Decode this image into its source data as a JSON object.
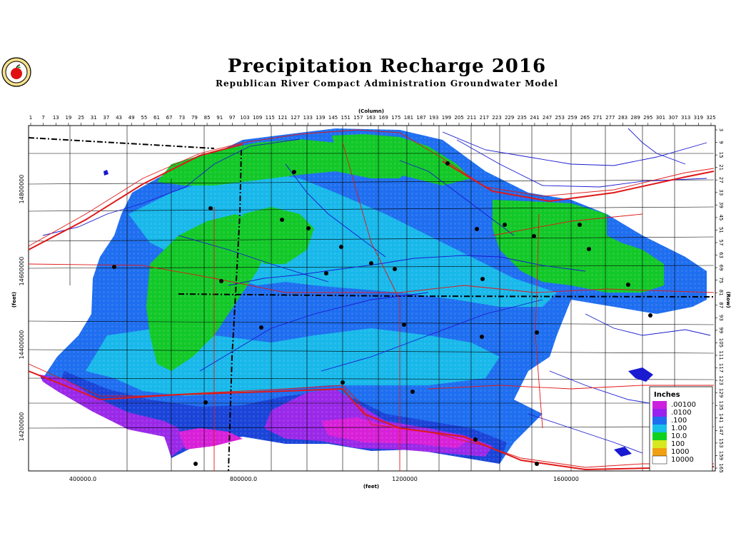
{
  "title": "Precipitation Recharge 2016",
  "subtitle": "Republican River Compact Administration Groundwater Model",
  "logo_icon": "apple-seal-icon",
  "top_axis": {
    "label": "(Column)",
    "ticks": [
      "1",
      "7",
      "13",
      "19",
      "25",
      "31",
      "37",
      "43",
      "49",
      "55",
      "61",
      "67",
      "73",
      "79",
      "85",
      "91",
      "97",
      "103",
      "109",
      "115",
      "121",
      "127",
      "133",
      "139",
      "145",
      "151",
      "157",
      "163",
      "169",
      "175",
      "181",
      "187",
      "193",
      "199",
      "205",
      "211",
      "217",
      "223",
      "229",
      "235",
      "241",
      "247",
      "253",
      "259",
      "265",
      "271",
      "277",
      "283",
      "289",
      "295",
      "301",
      "307",
      "313",
      "319",
      "325"
    ]
  },
  "right_axis": {
    "label": "(Row)",
    "ticks": [
      "3",
      "9",
      "15",
      "21",
      "27",
      "33",
      "39",
      "45",
      "51",
      "57",
      "63",
      "69",
      "75",
      "81",
      "87",
      "93",
      "99",
      "105",
      "111",
      "117",
      "123",
      "129",
      "135",
      "141",
      "147",
      "153",
      "159",
      "165"
    ]
  },
  "left_axis": {
    "label": "(feet)",
    "ticks": [
      "14800000",
      "14600000",
      "14400000",
      "14200000"
    ]
  },
  "bottom_axis": {
    "label": "(feet)",
    "ticks": [
      "400000.0",
      "800000.0",
      "1200000",
      "1600000"
    ]
  },
  "legend": {
    "title": "Inches",
    "items": [
      {
        "label": ".00100",
        "color": "#cc22dd"
      },
      {
        "label": ".0100",
        "color": "#9922ee"
      },
      {
        "label": ".100",
        "color": "#1e6ef0"
      },
      {
        "label": "1.00",
        "color": "#18c0e8"
      },
      {
        "label": "10.0",
        "color": "#10d020"
      },
      {
        "label": "100",
        "color": "#d8e820"
      },
      {
        "label": "1000",
        "color": "#f0a010"
      },
      {
        "label": "10000",
        "color": "#ffffff"
      }
    ]
  },
  "colors": {
    "rivers": "#1a1ad0",
    "roads": "#e01818",
    "boundaries": "#000000",
    "cities": "#000000"
  }
}
